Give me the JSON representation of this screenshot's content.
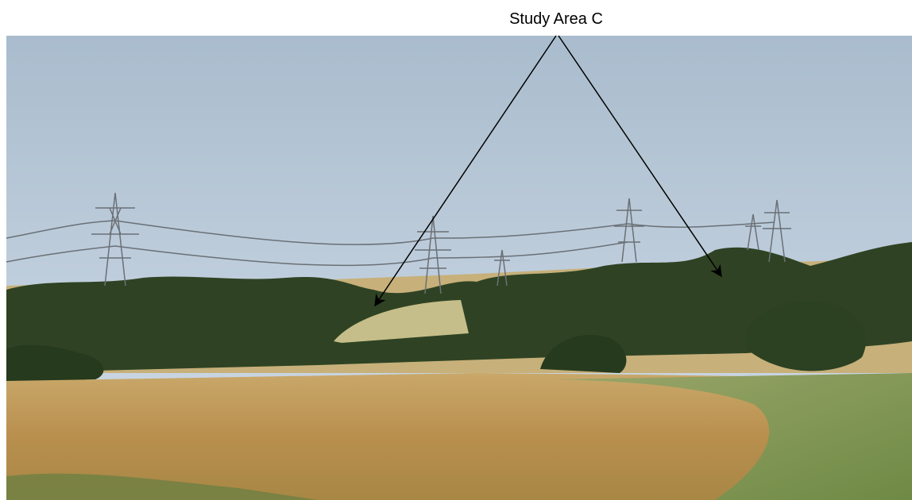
{
  "annotation": {
    "label": "Study Area C"
  }
}
